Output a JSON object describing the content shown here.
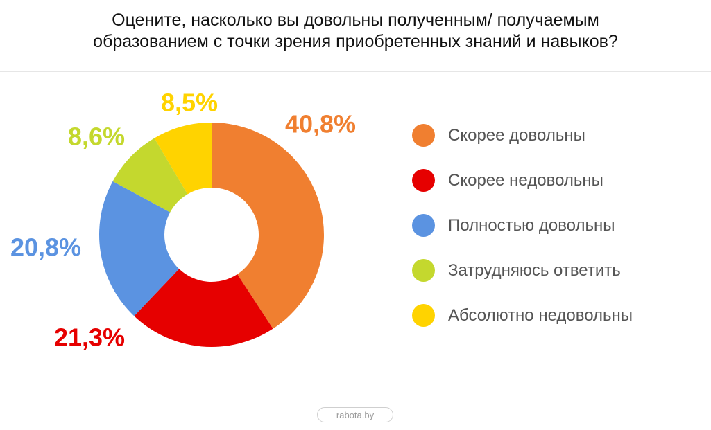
{
  "title": {
    "line1": "Оцените, насколько вы довольны полученным/ получаемым",
    "line2": "образованием с точки зрения приобретенных знаний и навыков?"
  },
  "chart_data": {
    "type": "pie",
    "variant": "donut",
    "start_angle": "top",
    "direction": "clockwise",
    "series": [
      {
        "name": "Скорее довольны",
        "value": 40.8,
        "label": "40,8%",
        "color": "#F07F30"
      },
      {
        "name": "Скорее недовольны",
        "value": 21.3,
        "label": "21,3%",
        "color": "#E60000"
      },
      {
        "name": "Полностью довольны",
        "value": 20.8,
        "label": "20,8%",
        "color": "#5B93E1"
      },
      {
        "name": "Затрудняюсь ответить",
        "value": 8.6,
        "label": "8,6%",
        "color": "#C4D82E"
      },
      {
        "name": "Абсолютно недовольны",
        "value": 8.5,
        "label": "8,5%",
        "color": "#FFD300"
      }
    ],
    "legend_position": "right"
  },
  "source": "rabota.by"
}
